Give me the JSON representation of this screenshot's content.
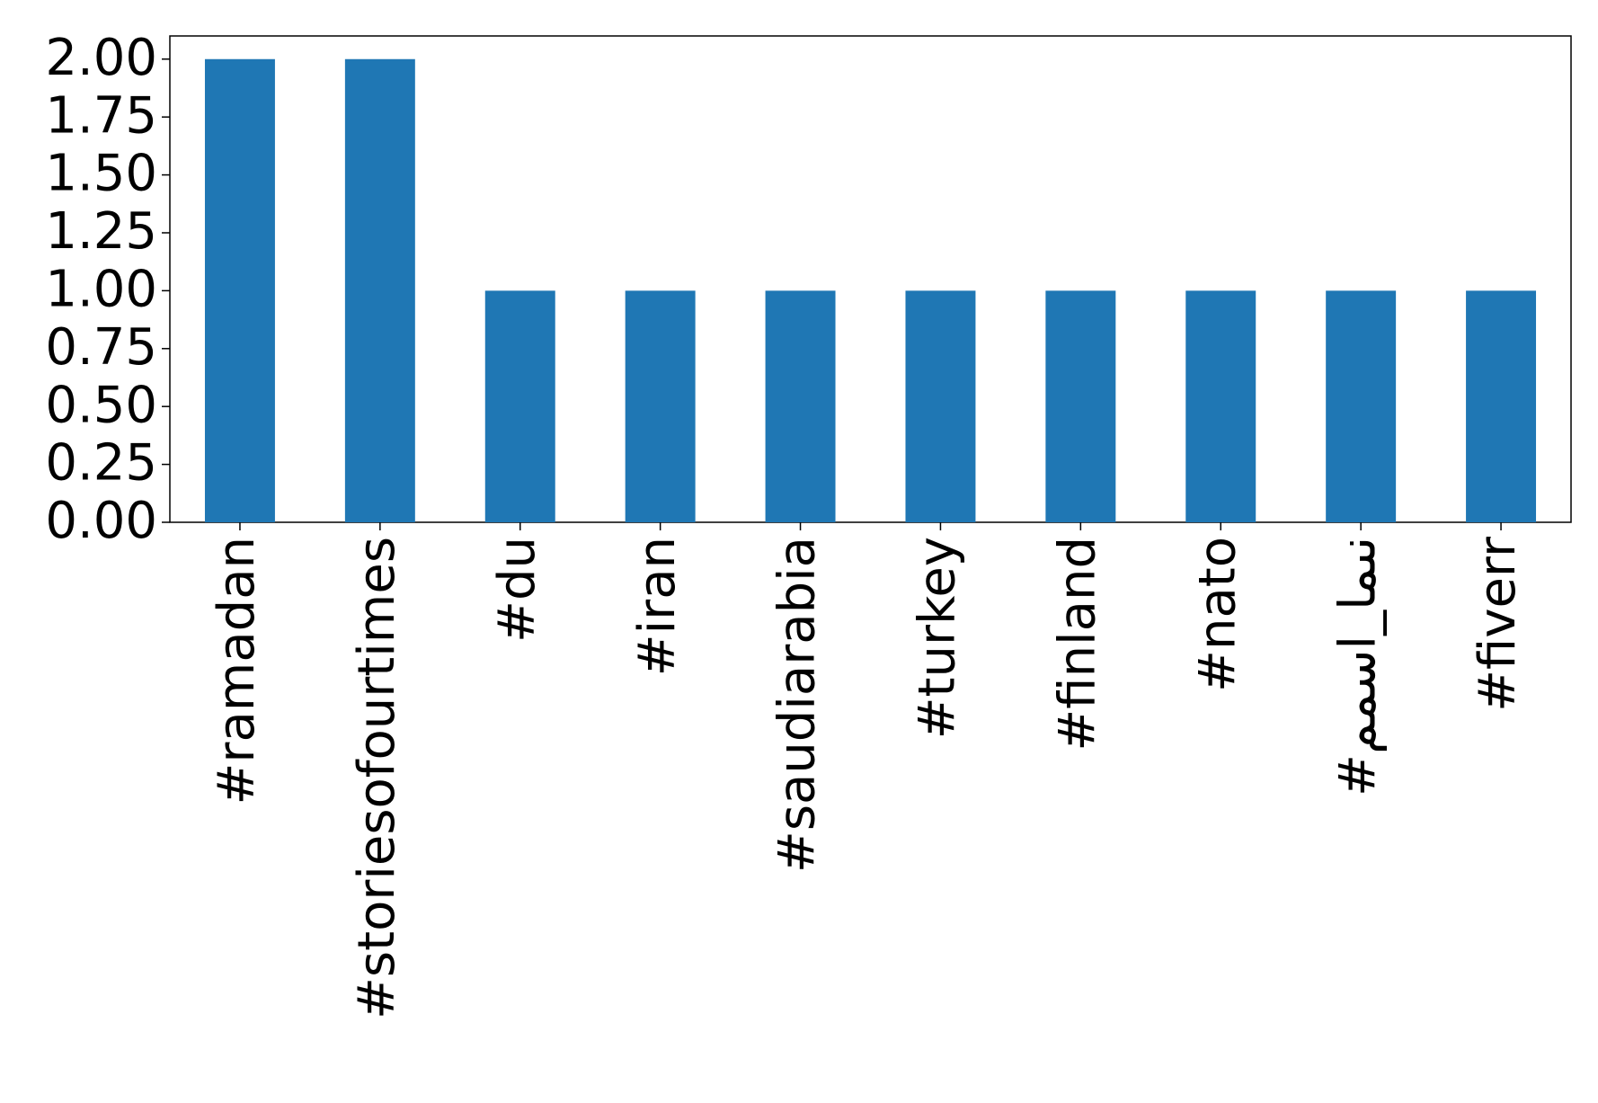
{
  "chart_data": {
    "type": "bar",
    "categories": [
      "#ramadan",
      "#storiesofourtimes",
      "#du",
      "#iran",
      "#saudiarabia",
      "#turkey",
      "#finland",
      "#nato",
      "#ممسا_امىن",
      "#fiverr"
    ],
    "values": [
      2,
      2,
      1,
      1,
      1,
      1,
      1,
      1,
      1,
      1
    ],
    "color": "#1f77b4",
    "ylim": [
      0,
      2.1
    ],
    "yticks": [
      {
        "value": 0,
        "label": "0.00"
      },
      {
        "value": 0.25,
        "label": "0.25"
      },
      {
        "value": 0.5,
        "label": "0.50"
      },
      {
        "value": 0.75,
        "label": "0.75"
      },
      {
        "value": 1,
        "label": "1.00"
      },
      {
        "value": 1.25,
        "label": "1.25"
      },
      {
        "value": 1.5,
        "label": "1.50"
      },
      {
        "value": 1.75,
        "label": "1.75"
      },
      {
        "value": 2,
        "label": "2.00"
      }
    ],
    "grid": false
  }
}
